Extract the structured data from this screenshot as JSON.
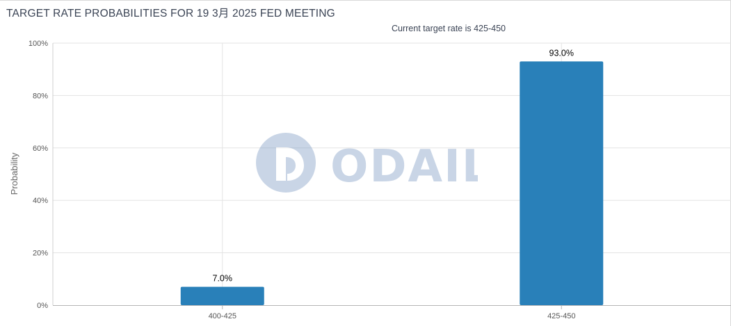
{
  "chart_data": {
    "type": "bar",
    "title": "TARGET RATE PROBABILITIES FOR 19 3月 2025 FED MEETING",
    "subtitle": "Current target rate is 425-450",
    "ylabel": "Probability",
    "xlabel": "",
    "categories": [
      "400-425",
      "425-450"
    ],
    "values": [
      7.0,
      93.0
    ],
    "data_labels": [
      "7.0%",
      "93.0%"
    ],
    "ylim": [
      0,
      100
    ],
    "yticks": [
      0,
      20,
      40,
      60,
      80,
      100
    ],
    "ytick_labels": [
      "0%",
      "20%",
      "40%",
      "60%",
      "80%",
      "100%"
    ],
    "grid": true,
    "bar_color": "#2980b9"
  },
  "watermark": {
    "text": "ODAILY",
    "color": "#7f9dc6"
  }
}
